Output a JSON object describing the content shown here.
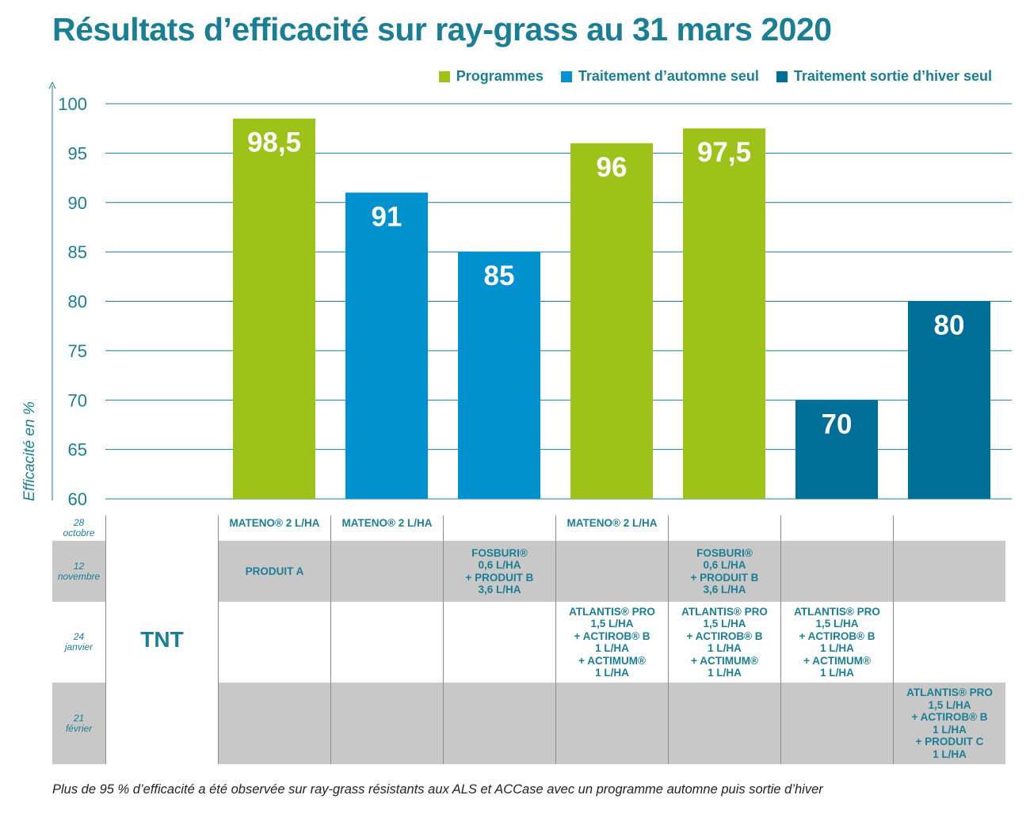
{
  "title": "Résultats d’efficacité sur ray-grass au 31 mars 2020",
  "legend": [
    {
      "label": "Programmes",
      "color": "#9dc31a"
    },
    {
      "label": "Traitement d’automne seul",
      "color": "#0091ce"
    },
    {
      "label": "Traitement sortie d’hiver seul",
      "color": "#006f98"
    }
  ],
  "chart_data": {
    "type": "bar",
    "ylabel": "Efficacité en %",
    "ylim": [
      60,
      100
    ],
    "yticks": [
      "100",
      "95",
      "90",
      "85",
      "80",
      "75",
      "70",
      "65",
      "60"
    ],
    "grid": true,
    "legend_position": "top-right",
    "series_colors": {
      "Programmes": "#9dc31a",
      "Traitement d’automne seul": "#0091ce",
      "Traitement sortie d’hiver seul": "#006f98"
    },
    "bars": [
      {
        "value": null,
        "label": "",
        "series": ""
      },
      {
        "value": 98.5,
        "label": "98,5",
        "series": "Programmes"
      },
      {
        "value": 91,
        "label": "91",
        "series": "Traitement d’automne seul"
      },
      {
        "value": 85,
        "label": "85",
        "series": "Traitement d’automne seul"
      },
      {
        "value": 96,
        "label": "96",
        "series": "Programmes"
      },
      {
        "value": 97.5,
        "label": "97,5",
        "series": "Programmes"
      },
      {
        "value": 70,
        "label": "70",
        "series": "Traitement sortie d’hiver seul"
      },
      {
        "value": 80,
        "label": "80",
        "series": "Traitement sortie d’hiver seul"
      }
    ]
  },
  "table": {
    "dates": [
      "28\noctobre",
      "12\nnovembre",
      "24\njanvier",
      "21\nfévrier"
    ],
    "tnt_label": "TNT",
    "columns": [
      [
        "MATENO® 2 L/HA",
        "PRODUIT A",
        "",
        ""
      ],
      [
        "MATENO® 2 L/HA",
        "",
        "",
        ""
      ],
      [
        "",
        "FOSBURI®\n0,6 L/HA\n+ PRODUIT B\n3,6 L/HA",
        "",
        ""
      ],
      [
        "MATENO® 2 L/HA",
        "",
        "ATLANTIS® PRO\n1,5 L/HA\n+ ACTIROB® B\n1 L/HA\n+ ACTIMUM®\n1 L/HA",
        ""
      ],
      [
        "",
        "FOSBURI®\n0,6 L/HA\n+ PRODUIT B\n3,6 L/HA",
        "ATLANTIS® PRO\n1,5 L/HA\n+ ACTIROB® B\n1 L/HA\n+ ACTIMUM®\n1 L/HA",
        ""
      ],
      [
        "",
        "",
        "ATLANTIS® PRO\n1,5 L/HA\n+ ACTIROB® B\n1 L/HA\n+ ACTIMUM®\n1 L/HA",
        ""
      ],
      [
        "",
        "",
        "",
        "ATLANTIS® PRO\n1,5 L/HA\n+ ACTIROB® B\n1 L/HA\n+ PRODUIT C\n1 L/HA"
      ]
    ]
  },
  "footnote": "Plus de 95 % d’efficacité a été observée sur ray-grass résistants aux ALS et ACCase avec un programme automne puis sortie d’hiver"
}
